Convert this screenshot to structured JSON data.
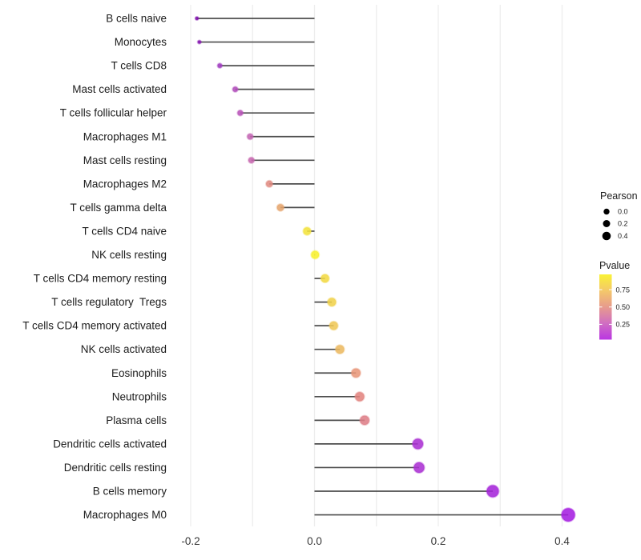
{
  "figure": {
    "background": "#ffffff"
  },
  "chart_data": {
    "type": "lollipop",
    "orientation": "horizontal",
    "title": "",
    "xlabel": "",
    "ylabel": "",
    "xlim": [
      -0.24,
      0.46
    ],
    "x_ticks": [
      -0.2,
      0.0,
      0.2,
      0.4
    ],
    "x_tick_labels": [
      "-0.2",
      "0.0",
      "0.2",
      "0.4"
    ],
    "x_gridlines": [
      -0.2,
      -0.1,
      0.0,
      0.1,
      0.2,
      0.3,
      0.4
    ],
    "grid": true,
    "baseline": 0.0,
    "categories": [
      "B cells naive",
      "Monocytes",
      "T cells CD8",
      "Mast cells activated",
      "T cells follicular helper",
      "Macrophages M1",
      "Mast cells resting",
      "Macrophages M2",
      "T cells gamma delta",
      "T cells CD4 naive",
      "NK cells resting",
      "T cells CD4 memory resting",
      "T cells regulatory  Tregs",
      "T cells CD4 memory activated",
      "NK cells activated",
      "Eosinophils",
      "Neutrophils",
      "Plasma cells",
      "Dendritic cells activated",
      "Dendritic cells resting",
      "B cells memory",
      "Macrophages M0"
    ],
    "series": [
      {
        "name": "Pearson",
        "values": [
          -0.19,
          -0.186,
          -0.153,
          -0.128,
          -0.12,
          -0.104,
          -0.102,
          -0.073,
          -0.055,
          -0.012,
          0.001,
          0.017,
          0.028,
          0.031,
          0.041,
          0.067,
          0.073,
          0.081,
          0.167,
          0.169,
          0.288,
          0.41
        ]
      }
    ],
    "point_colors": [
      "#7f10ad",
      "#8414b0",
      "#a13cc0",
      "#b24dbb",
      "#b954ba",
      "#c465b3",
      "#c768b0",
      "#e08b82",
      "#e5a56d",
      "#f3e23c",
      "#f7f02d",
      "#f2da44",
      "#f0d14b",
      "#efc757",
      "#ecba62",
      "#e8977a",
      "#e28480",
      "#de7e88",
      "#ab31d3",
      "#ab31d3",
      "#a526da",
      "#a51fe0"
    ],
    "legend": {
      "position": "right",
      "size_legend": {
        "title": "Pearson",
        "entries": [
          "0.0",
          "0.2",
          "0.4"
        ],
        "entry_values": [
          0.0,
          0.2,
          0.4
        ],
        "key_color": "#000000"
      },
      "color_legend": {
        "title": "Pvalue",
        "tick_labels": [
          "0.75",
          "0.50",
          "0.25"
        ],
        "tick_values": [
          0.75,
          0.5,
          0.25
        ],
        "gradient_top_to_bottom": [
          "#f9f235",
          "#f4c86a",
          "#e79b8d",
          "#d06ec2",
          "#ba35e2"
        ],
        "range": [
          0.03,
          0.97
        ]
      }
    },
    "colors": {
      "stem": "#4d4d4d",
      "gridline": "#ededed",
      "axis_text": "#383838",
      "label_text": "#1c1c1c"
    }
  }
}
